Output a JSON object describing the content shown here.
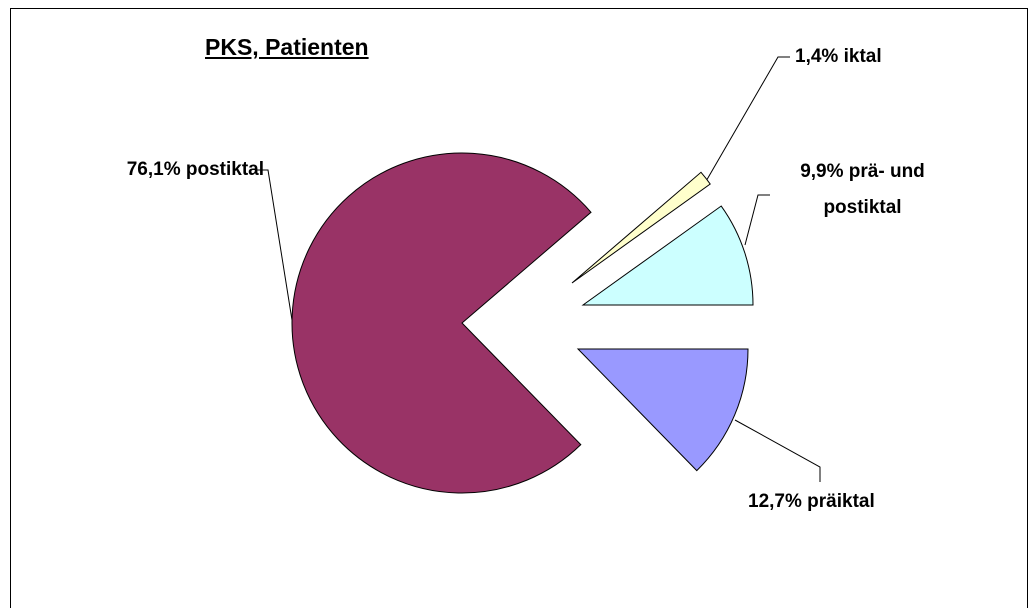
{
  "chart_data": {
    "type": "pie",
    "title": "PKS, Patienten",
    "categories": [
      "präiktal",
      "postiktal",
      "iktal",
      "prä- und postiktal"
    ],
    "values": [
      12.7,
      76.1,
      1.4,
      9.9
    ],
    "value_labels": [
      "12,7%",
      "76,1%",
      "1,4%",
      "9,9%"
    ],
    "colors": [
      "#9999ff",
      "#993366",
      "#ffffcc",
      "#ccffff"
    ]
  }
}
